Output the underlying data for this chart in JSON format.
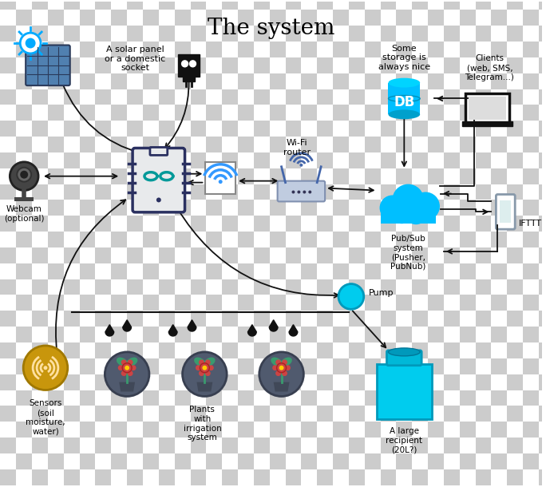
{
  "title": "The system",
  "title_fontsize": 20,
  "bg_checker_color1": "#cccccc",
  "bg_checker_color2": "#ffffff",
  "checker_size": 20,
  "labels": {
    "solar": "A solar panel\nor a domestic\nsocket",
    "webcam": "Webcam\n(optional)",
    "wifi": "Wi-Fi\nrouter",
    "db": "Some\nstorage is\nalways nice",
    "clients": "Clients\n(web, SMS,\nTelegram...)",
    "pubsub": "Pub/Sub\nsystem\n(Pusher,\nPubNub)",
    "ifttt": "IFTTT",
    "pump": "Pump",
    "sensor": "Sensors\n(soil\nmoisture,\nwater)",
    "plants": "Plants\nwith\nirrigation\nsystem",
    "tank": "A large\nrecipient\n(20L?)"
  },
  "colors": {
    "cyan": "#00bfff",
    "dark_blue": "#1e3a5f",
    "blue_icon": "#4080c0",
    "teal": "#009999",
    "gold": "#c8960c",
    "dark_gray": "#505a6e",
    "red_flower": "#cc4444",
    "green_leaf": "#3a9a6e",
    "black": "#111111",
    "white": "#ffffff",
    "arduino_bg": "#f0f0f0",
    "light_blue_router": "#8ab0e0",
    "phone_border": "#99aabb"
  }
}
